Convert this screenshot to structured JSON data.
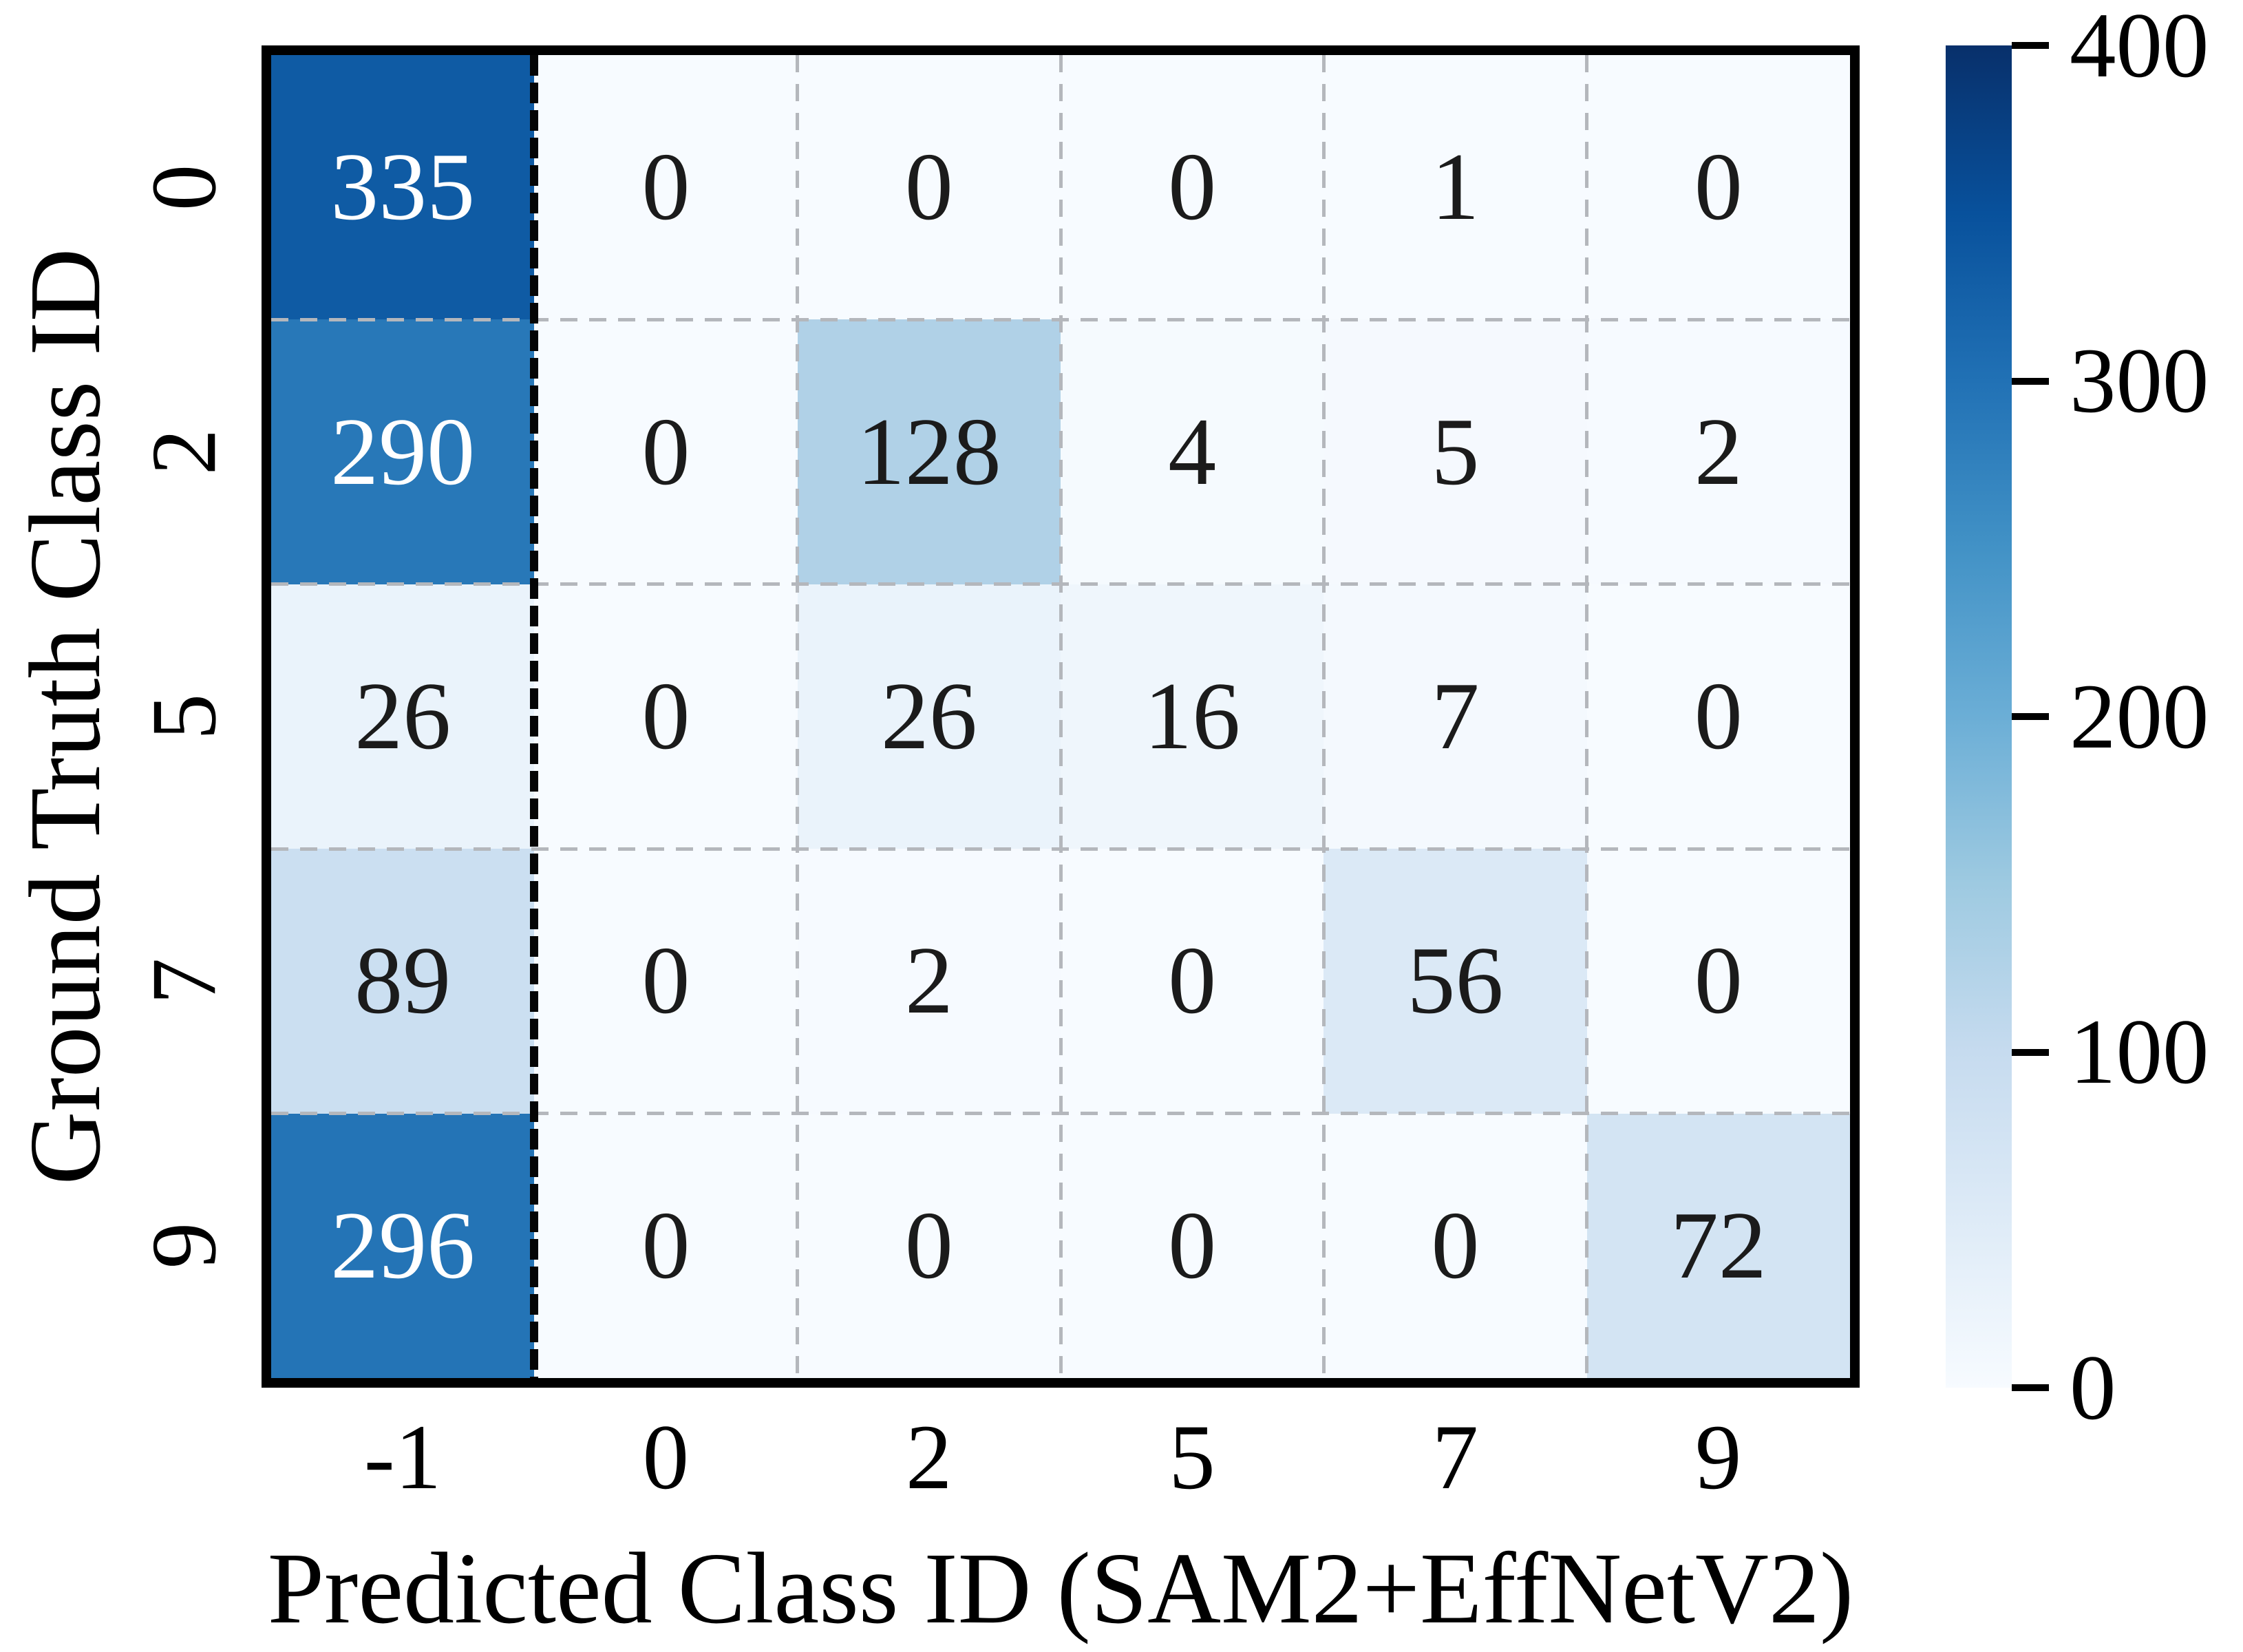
{
  "chart_data": {
    "type": "heatmap",
    "xlabel": "Predicted Class ID (SAM2+EffNetV2)",
    "ylabel": "Ground Truth Class ID",
    "x_tick_labels": [
      "-1",
      "0",
      "2",
      "5",
      "7",
      "9"
    ],
    "y_tick_labels": [
      "0",
      "2",
      "5",
      "7",
      "9"
    ],
    "values": [
      [
        335,
        0,
        0,
        0,
        1,
        0
      ],
      [
        290,
        0,
        128,
        4,
        5,
        2
      ],
      [
        26,
        0,
        26,
        16,
        7,
        0
      ],
      [
        89,
        0,
        2,
        0,
        56,
        0
      ],
      [
        296,
        0,
        0,
        0,
        0,
        72
      ]
    ],
    "vmin": 0,
    "vmax": 400,
    "colorbar_tick_labels": [
      "0",
      "100",
      "200",
      "300",
      "400"
    ],
    "colormap_name": "Blues",
    "colormap_stops": [
      "#f7fbff",
      "#deebf7",
      "#c6dbef",
      "#9ecae1",
      "#6baed6",
      "#4292c6",
      "#2171b5",
      "#08519c",
      "#08306b"
    ],
    "separator_after_column_label": "-1",
    "grid_style": "dashed",
    "legend_position": "right-colorbar"
  },
  "colors": {
    "annotation_dark": "#1b1b1b",
    "annotation_light": "#ffffff",
    "grid_gray": "#b4b7bc",
    "frame_black": "#000000",
    "background": "#ffffff"
  }
}
